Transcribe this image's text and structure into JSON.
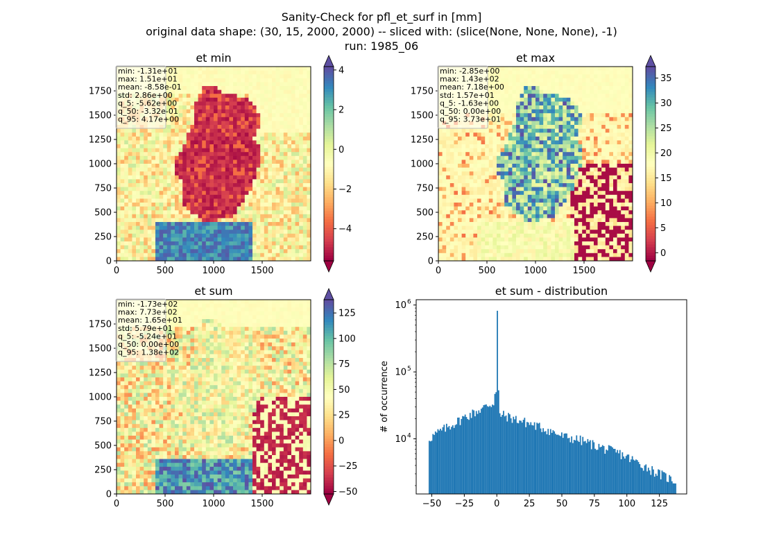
{
  "suptitle": [
    "Sanity-Check for pfl_et_surf in [mm]",
    "original data shape: (30, 15, 2000, 2000) -- sliced with: (slice(None, None, None), -1)",
    "run: 1985_06"
  ],
  "chart_data": [
    {
      "type": "heatmap",
      "title": "et min",
      "colormap": "Spectral",
      "x_ticks": [
        "0",
        "500",
        "1000",
        "1500"
      ],
      "y_ticks": [
        "0",
        "250",
        "500",
        "750",
        "1000",
        "1250",
        "1500",
        "1750"
      ],
      "xlim": [
        0,
        2000
      ],
      "ylim": [
        0,
        2000
      ],
      "colorbar": {
        "min": -5.62,
        "max": 4.17,
        "ticks": [
          -4,
          -2,
          0,
          2,
          4
        ],
        "tick_labels": [
          "−4",
          "−2",
          "0",
          "2",
          "4"
        ]
      },
      "stats": [
        "min: -1.31e+01",
        "max: 1.51e+01",
        "mean: -8.58e-01",
        "std: 2.86e+00",
        "q_5: -5.62e+00",
        "q_50: -3.32e-01",
        "q_95: 4.17e+00"
      ]
    },
    {
      "type": "heatmap",
      "title": "et max",
      "colormap": "Spectral",
      "x_ticks": [
        "0",
        "500",
        "1000",
        "1500"
      ],
      "y_ticks": [
        "0",
        "250",
        "500",
        "750",
        "1000",
        "1250",
        "1500",
        "1750"
      ],
      "xlim": [
        0,
        2000
      ],
      "ylim": [
        0,
        2000
      ],
      "colorbar": {
        "min": -1.63,
        "max": 37.3,
        "ticks": [
          0,
          5,
          10,
          15,
          20,
          25,
          30,
          35
        ],
        "tick_labels": [
          "0",
          "5",
          "10",
          "15",
          "20",
          "25",
          "30",
          "35"
        ]
      },
      "stats": [
        "min: -2.85e+00",
        "max: 1.43e+02",
        "mean: 7.18e+00",
        "std: 1.57e+01",
        "q_5: -1.63e+00",
        "q_50: 0.00e+00",
        "q_95: 3.73e+01"
      ]
    },
    {
      "type": "heatmap",
      "title": "et sum",
      "colormap": "Spectral",
      "x_ticks": [
        "0",
        "500",
        "1000",
        "1500"
      ],
      "y_ticks": [
        "0",
        "250",
        "500",
        "750",
        "1000",
        "1250",
        "1500",
        "1750"
      ],
      "xlim": [
        0,
        2000
      ],
      "ylim": [
        0,
        2000
      ],
      "colorbar": {
        "min": -52.4,
        "max": 138,
        "ticks": [
          -50,
          -25,
          0,
          25,
          50,
          75,
          100,
          125
        ],
        "tick_labels": [
          "−50",
          "−25",
          "0",
          "25",
          "50",
          "75",
          "100",
          "125"
        ]
      },
      "stats": [
        "min: -1.73e+02",
        "max: 7.73e+02",
        "mean: 1.65e+01",
        "std: 5.79e+01",
        "q_5: -5.24e+01",
        "q_50: 0.00e+00",
        "q_95: 1.38e+02"
      ]
    },
    {
      "type": "bar",
      "subtype": "histogram",
      "title": "et sum - distribution",
      "xlabel": "",
      "ylabel": "# of occurrence",
      "yscale": "log",
      "xlim": [
        -62,
        146
      ],
      "ylim": [
        1500,
        1200000
      ],
      "x_ticks": [
        -50,
        -25,
        0,
        25,
        50,
        75,
        100,
        125
      ],
      "x_tick_labels": [
        "−50",
        "−25",
        "0",
        "25",
        "50",
        "75",
        "100",
        "125"
      ],
      "y_ticks": [
        10000,
        100000,
        1000000
      ],
      "y_tick_labels": [
        "10",
        "10",
        "10"
      ],
      "y_tick_exponents": [
        "4",
        "5",
        "6"
      ],
      "bar_color": "#1f77b4",
      "bin_range": [
        -52.4,
        138
      ],
      "bins": 200,
      "peak": {
        "x": 0,
        "value": 820000
      },
      "profile_points": [
        [
          -52.4,
          10000
        ],
        [
          -45,
          12500
        ],
        [
          -35,
          16000
        ],
        [
          -25,
          21000
        ],
        [
          -15,
          26000
        ],
        [
          -5,
          33000
        ],
        [
          0,
          34000
        ],
        [
          1,
          24000
        ],
        [
          10,
          21000
        ],
        [
          25,
          17000
        ],
        [
          40,
          13500
        ],
        [
          50,
          11000
        ],
        [
          65,
          9500
        ],
        [
          80,
          7500
        ],
        [
          95,
          6000
        ],
        [
          105,
          4800
        ],
        [
          115,
          3800
        ],
        [
          125,
          3000
        ],
        [
          138,
          2300
        ]
      ]
    }
  ]
}
